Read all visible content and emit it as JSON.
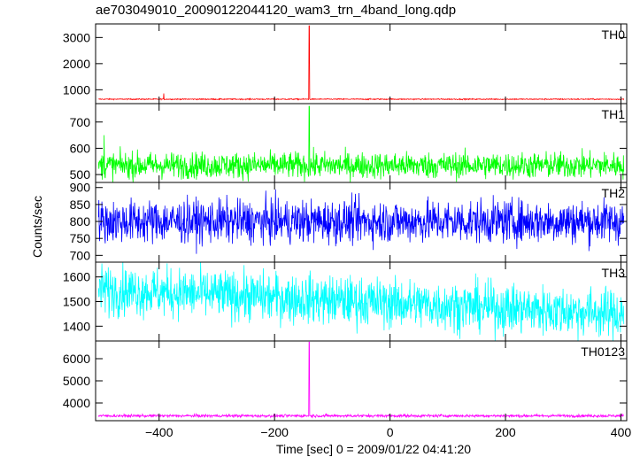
{
  "header": {
    "file_title": "ae703049010_20090122044120_wam3_trn_4band_long.qdp"
  },
  "axes": {
    "ylabel": "Counts/sec",
    "xlabel": "Time [sec] 0 = 2009/01/22 04:41:20",
    "xlim": [
      -510,
      410
    ],
    "xticks": [
      -400,
      -200,
      0,
      200,
      400
    ],
    "xtick_labels": [
      "−400",
      "−200",
      "0",
      "200",
      "400"
    ]
  },
  "chart_data": [
    {
      "type": "line",
      "name": "TH0",
      "color": "#ff0000",
      "ylim": [
        470,
        3520
      ],
      "yticks": [
        1000,
        2000,
        3000
      ],
      "ytick_labels": [
        "1000",
        "2000",
        "3000"
      ],
      "baseline": 640,
      "noise": 22,
      "spikes": [
        {
          "x": -140,
          "y": 3450
        },
        {
          "x": -392,
          "y": 860
        }
      ],
      "x_range": [
        -505,
        405
      ]
    },
    {
      "type": "line",
      "name": "TH1",
      "color": "#00ff00",
      "ylim": [
        470,
        770
      ],
      "yticks": [
        500,
        600,
        700
      ],
      "ytick_labels": [
        "500",
        "600",
        "700"
      ],
      "baseline": 535,
      "noise": 55,
      "spikes": [
        {
          "x": -140,
          "y": 760
        },
        {
          "x": -495,
          "y": 650
        }
      ],
      "x_range": [
        -505,
        405
      ]
    },
    {
      "type": "line",
      "name": "TH2",
      "color": "#0000ff",
      "ylim": [
        680,
        915
      ],
      "yticks": [
        700,
        750,
        800,
        850,
        900
      ],
      "ytick_labels": [
        "700",
        "750",
        "800",
        "850",
        "900"
      ],
      "baseline": 800,
      "noise": 70,
      "spikes": [],
      "x_range": [
        -505,
        405
      ]
    },
    {
      "type": "line",
      "name": "TH3",
      "color": "#00ffff",
      "ylim": [
        1340,
        1660
      ],
      "yticks": [
        1400,
        1500,
        1600
      ],
      "ytick_labels": [
        "1400",
        "1500",
        "1600"
      ],
      "baseline_start": 1550,
      "baseline_end": 1450,
      "noise": 110,
      "spikes": [],
      "x_range": [
        -505,
        405
      ]
    },
    {
      "type": "line",
      "name": "TH0123",
      "color": "#ff00ff",
      "ylim": [
        3200,
        6800
      ],
      "yticks": [
        4000,
        5000,
        6000
      ],
      "ytick_labels": [
        "4000",
        "5000",
        "6000"
      ],
      "baseline": 3420,
      "noise": 70,
      "spikes": [
        {
          "x": -140,
          "y": 6750
        }
      ],
      "x_range": [
        -505,
        405
      ]
    }
  ]
}
